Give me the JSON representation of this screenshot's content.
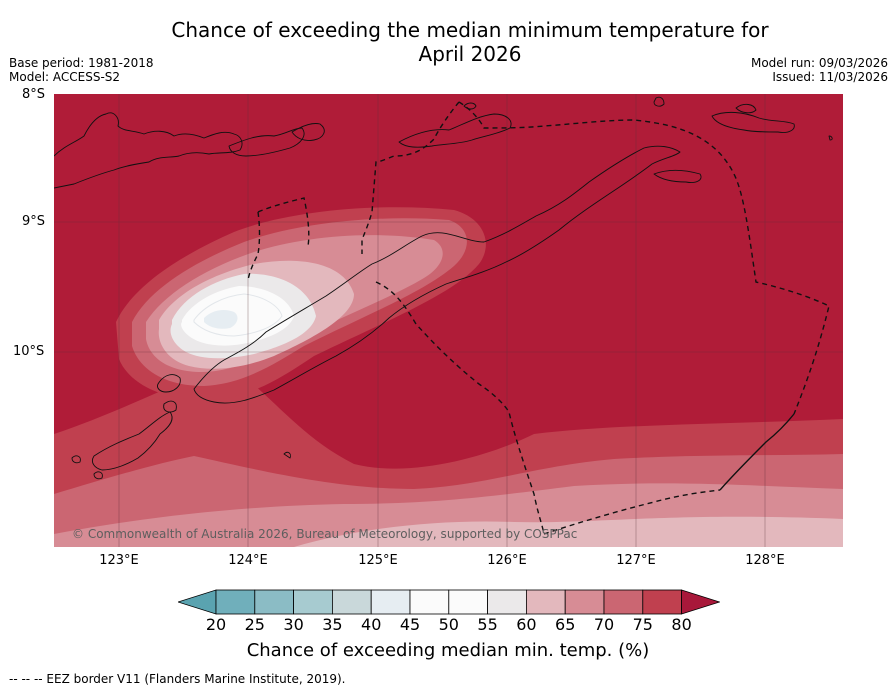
{
  "title": "Chance of exceeding the median minimum temperature for\nApril 2026",
  "meta_left": {
    "base_period": "Base period: 1981-2018",
    "model": "Model: ACCESS-S2"
  },
  "meta_right": {
    "model_run": "Model run: 09/03/2026",
    "issued": "Issued: 11/03/2026"
  },
  "map": {
    "lat_labels": [
      "8°S",
      "9°S",
      "10°S"
    ],
    "lon_labels": [
      "123°E",
      "124°E",
      "125°E",
      "126°E",
      "127°E",
      "128°E"
    ],
    "copyright": "© Commonwealth of Australia 2026, Bureau of Meteorology, supported by COSPPac",
    "colors": {
      "80+": "#b01c38",
      "75-80": "#c0404f",
      "70-75": "#cb6672",
      "65-70": "#d78c95",
      "60-65": "#e3b8bd",
      "55-60": "#ebe9ea",
      "50-55": "#fbfbfb",
      "45-50": "#e6edf2"
    }
  },
  "colorbar": {
    "ticks": [
      "20",
      "25",
      "30",
      "35",
      "40",
      "45",
      "50",
      "55",
      "60",
      "65",
      "70",
      "75",
      "80"
    ],
    "colors": [
      "#5aa3b0",
      "#70afbb",
      "#8bbcc5",
      "#a7cbd0",
      "#c9d8da",
      "#e6edf2",
      "#fbfbfb",
      "#fbfbfb",
      "#ebe9ea",
      "#e3b8bd",
      "#d78c95",
      "#cb6672",
      "#c0404f",
      "#a8183a"
    ],
    "label": "Chance of exceeding median min. temp. (%)"
  },
  "footer": "--  --  -- EEZ border V11 (Flanders Marine Institute, 2019)."
}
